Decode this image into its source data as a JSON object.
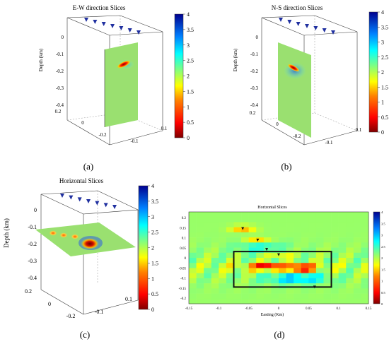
{
  "chart_data": [
    {
      "type": "volume-slice",
      "title": "E-W direction Slices",
      "ylabel": "Depth (km)",
      "z_ticks": [
        "0",
        "-0.1",
        "-0.2",
        "-0.3",
        "-0.4"
      ],
      "x_ticks": [
        "0.2",
        "0",
        "-0.2"
      ],
      "y_ticks": [
        "0.1",
        "-0.1"
      ],
      "colorbar": {
        "min": 0,
        "max": 4,
        "ticks": [
          "4",
          "3.5",
          "3",
          "2.5",
          "2",
          "1.5",
          "1",
          "0.5",
          "0"
        ]
      },
      "caption": "(a)"
    },
    {
      "type": "volume-slice",
      "title": "N-S direction Slices",
      "ylabel": "Depth (km)",
      "z_ticks": [
        "0",
        "-0.1",
        "-0.2",
        "-0.3",
        "-0.4"
      ],
      "x_ticks": [
        "0.2",
        "0",
        "-0.2"
      ],
      "y_ticks": [
        "0.1",
        "-0.1"
      ],
      "colorbar": {
        "min": 0,
        "max": 4,
        "ticks": [
          "4",
          "3.5",
          "3",
          "2.5",
          "2",
          "1.5",
          "1",
          "0.5",
          "0"
        ]
      },
      "caption": "(b)"
    },
    {
      "type": "volume-slice",
      "title": "Horizontal Slices",
      "ylabel": "Depth (km)",
      "z_ticks": [
        "0",
        "-0.1",
        "-0.2",
        "-0.3",
        "-0.4"
      ],
      "x_ticks": [
        "0.2",
        "0",
        "-0.2"
      ],
      "y_ticks": [
        "0.1",
        "-0.1"
      ],
      "colorbar": {
        "min": 0,
        "max": 4,
        "ticks": [
          "4",
          "3.5",
          "3",
          "2.5",
          "2",
          "1.5",
          "1",
          "0.5",
          "0"
        ]
      },
      "caption": "(c)"
    },
    {
      "type": "heatmap",
      "title": "Horizontal Slices",
      "xlabel": "Easting (Km)",
      "x_ticks": [
        "-0.15",
        "-0.1",
        "-0.05",
        "0",
        "0.05",
        "0.1",
        "0.15"
      ],
      "y_ticks": [
        "0.2",
        "0.15",
        "0.1",
        "0.05",
        "0",
        "-0.05",
        "-0.1",
        "-0.15",
        "-0.2"
      ],
      "xlim": [
        -0.15,
        0.15
      ],
      "ylim": [
        -0.22,
        0.22
      ],
      "colorbar": {
        "min": 0,
        "max": 4,
        "ticks": [
          "4",
          "3.5",
          "3",
          "2.5",
          "2",
          "1.5",
          "1",
          "0.5",
          "0"
        ]
      },
      "anomalies": [
        {
          "x": -0.06,
          "y": 0.14,
          "value": 1.3
        },
        {
          "x": -0.035,
          "y": 0.085,
          "value": 1.4
        },
        {
          "x": 0.0,
          "y": 0.015,
          "value": 1.6
        },
        {
          "x": 0.038,
          "y": -0.05,
          "value": 0.2
        },
        {
          "x": -0.02,
          "y": -0.04,
          "value": 0.7
        }
      ],
      "stations": [
        {
          "x": -0.06,
          "y": 0.14
        },
        {
          "x": -0.035,
          "y": 0.085
        },
        {
          "x": -0.02,
          "y": 0.04
        },
        {
          "x": 0.0,
          "y": 0.015
        },
        {
          "x": 0.06,
          "y": -0.14
        }
      ],
      "box": {
        "x": [
          -0.075,
          0.088
        ],
        "y": [
          -0.14,
          0.03
        ]
      },
      "caption": "(d)"
    }
  ]
}
